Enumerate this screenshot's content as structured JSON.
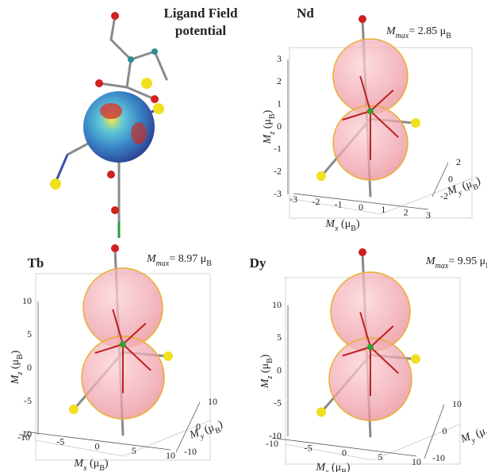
{
  "panels": [
    {
      "title_lines": [
        "Ligand Field",
        "potential"
      ]
    },
    {
      "title": "Nd",
      "mmax": [
        {
          "text": "M",
          "style": "italic"
        },
        {
          "text": "max",
          "style": "sub-italic"
        },
        {
          "text": "= 2.85 μ"
        },
        {
          "text": "B",
          "style": "sub"
        }
      ],
      "z_label": [
        {
          "text": "M",
          "style": "italic"
        },
        {
          "text": "z",
          "style": "sub-italic"
        },
        {
          "text": " (μ"
        },
        {
          "text": "B",
          "style": "sub"
        },
        {
          "text": ")"
        }
      ],
      "x_label": [
        {
          "text": "M",
          "style": "italic"
        },
        {
          "text": "x",
          "style": "sub-italic"
        },
        {
          "text": " (μ"
        },
        {
          "text": "B",
          "style": "sub"
        },
        {
          "text": ")"
        }
      ],
      "y_label": [
        {
          "text": "M",
          "style": "italic"
        },
        {
          "text": "y",
          "style": "sub-italic"
        },
        {
          "text": " (μ"
        },
        {
          "text": "B",
          "style": "sub"
        },
        {
          "text": ")"
        }
      ],
      "z_ticks": [
        3,
        2,
        1,
        0,
        -1,
        -2,
        -3
      ],
      "x_ticks": [
        -3,
        -2,
        -1,
        0,
        1,
        2,
        3
      ],
      "y_ticks": [
        2,
        0,
        -2
      ]
    },
    {
      "title": "Tb",
      "mmax": [
        {
          "text": "M",
          "style": "italic"
        },
        {
          "text": "max",
          "style": "sub-italic"
        },
        {
          "text": "= 8.97 μ"
        },
        {
          "text": "B",
          "style": "sub"
        }
      ],
      "z_label": [
        {
          "text": "M",
          "style": "italic"
        },
        {
          "text": "z",
          "style": "sub-italic"
        },
        {
          "text": " (μ"
        },
        {
          "text": "B",
          "style": "sub"
        },
        {
          "text": ")"
        }
      ],
      "x_label": [
        {
          "text": "M",
          "style": "italic"
        },
        {
          "text": "x",
          "style": "sub-italic"
        },
        {
          "text": " (μ"
        },
        {
          "text": "B",
          "style": "sub"
        },
        {
          "text": ")"
        }
      ],
      "y_label": [
        {
          "text": "M",
          "style": "italic"
        },
        {
          "text": "y",
          "style": "sub-italic"
        },
        {
          "text": " (μ"
        },
        {
          "text": "B",
          "style": "sub"
        },
        {
          "text": ")"
        }
      ],
      "z_ticks": [
        10,
        5,
        0,
        -5,
        -10
      ],
      "x_ticks": [
        -10,
        -5,
        0,
        5,
        10
      ],
      "y_ticks": [
        10,
        0,
        -10
      ]
    },
    {
      "title": "Dy",
      "mmax": [
        {
          "text": "M",
          "style": "italic"
        },
        {
          "text": "max",
          "style": "sub-italic"
        },
        {
          "text": "= 9.95 μ"
        },
        {
          "text": "B",
          "style": "sub"
        }
      ],
      "z_label": [
        {
          "text": "M",
          "style": "italic"
        },
        {
          "text": "z",
          "style": "sub-italic"
        },
        {
          "text": " (μ"
        },
        {
          "text": "B",
          "style": "sub"
        },
        {
          "text": ")"
        }
      ],
      "x_label": [
        {
          "text": "M",
          "style": "italic"
        },
        {
          "text": "x",
          "style": "sub-italic"
        },
        {
          "text": " (μ"
        },
        {
          "text": "B",
          "style": "sub"
        },
        {
          "text": ")"
        }
      ],
      "y_label": [
        {
          "text": "M",
          "style": "italic"
        },
        {
          "text": "y",
          "style": "sub-italic"
        },
        {
          "text": " (μ"
        },
        {
          "text": "B",
          "style": "sub"
        },
        {
          "text": ")"
        }
      ],
      "z_ticks": [
        10,
        5,
        0,
        -5,
        -10
      ],
      "x_ticks": [
        -10,
        -5,
        0,
        5,
        10
      ],
      "y_ticks": [
        10,
        0,
        -10
      ]
    }
  ]
}
